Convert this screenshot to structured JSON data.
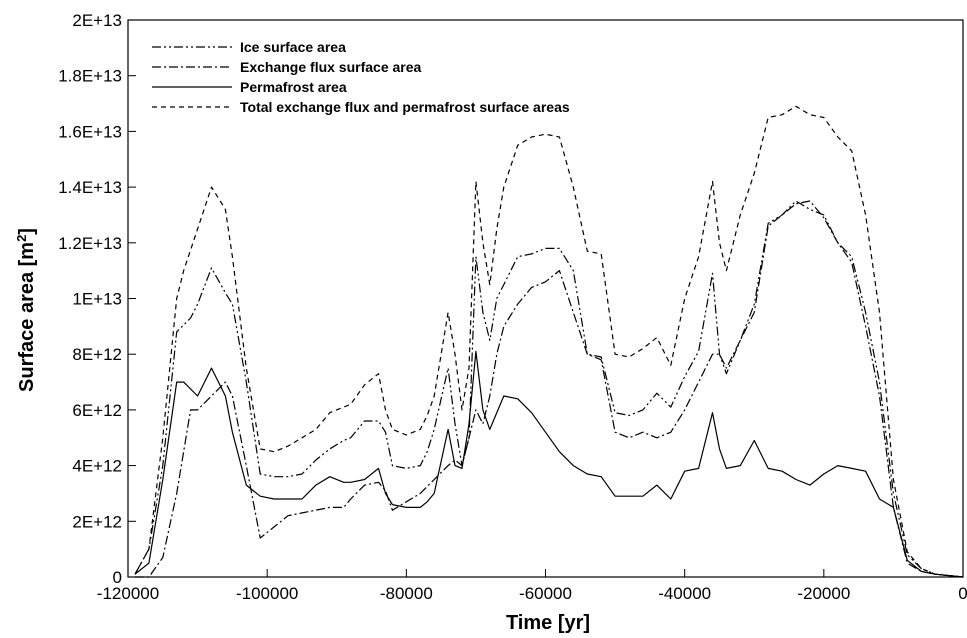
{
  "chart_data": {
    "type": "line",
    "title": "",
    "xlabel": "Time [yr]",
    "ylabel_main": "Surface area [m",
    "ylabel_sup": "2",
    "ylabel_close": "]",
    "xlim": [
      -120000,
      0
    ],
    "ylim": [
      0,
      20000000000000
    ],
    "x_ticks": [
      -120000,
      -100000,
      -80000,
      -60000,
      -40000,
      -20000,
      0
    ],
    "x_tick_labels": [
      "-120000",
      "-100000",
      "-80000",
      "-60000",
      "-40000",
      "-20000",
      "0"
    ],
    "y_ticks": [
      0,
      2000000000000,
      4000000000000,
      6000000000000,
      8000000000000,
      10000000000000,
      12000000000000,
      14000000000000,
      16000000000000,
      18000000000000,
      20000000000000
    ],
    "y_tick_labels": [
      "0",
      "2E+12",
      "4E+12",
      "6E+12",
      "8E+12",
      "1E+13",
      "1.2E+13",
      "1.4E+13",
      "1.6E+13",
      "1.8E+13",
      "2E+13"
    ],
    "grid": false,
    "legend_position": "top-left",
    "series": [
      {
        "name": "Ice surface area",
        "style": "dashdotdot",
        "x": [
          -119000,
          -117000,
          -115000,
          -113000,
          -111000,
          -110000,
          -108000,
          -106000,
          -105000,
          -103000,
          -101000,
          -99000,
          -97000,
          -95000,
          -93000,
          -91000,
          -89000,
          -88000,
          -86000,
          -84000,
          -83000,
          -82000,
          -80000,
          -78000,
          -77000,
          -76000,
          -74000,
          -73000,
          -72000,
          -71000,
          -70000,
          -69000,
          -68000,
          -67000,
          -66000,
          -64000,
          -62000,
          -60000,
          -58000,
          -56000,
          -54000,
          -52000,
          -50000,
          -48000,
          -46000,
          -44000,
          -42000,
          -40000,
          -38000,
          -36000,
          -35000,
          -34000,
          -32000,
          -30000,
          -28000,
          -26000,
          -24000,
          -22000,
          -20000,
          -18000,
          -16000,
          -14000,
          -12000,
          -10000,
          -8000,
          -6000,
          -4000,
          -2000,
          0
        ],
        "y": [
          100000000000.0,
          1000000000000.0,
          4000000000000.0,
          8800000000000.0,
          9300000000000.0,
          9800000000000.0,
          11100000000000.0,
          10200000000000.0,
          9800000000000.0,
          7000000000000.0,
          3700000000000.0,
          3600000000000.0,
          3600000000000.0,
          3700000000000.0,
          4200000000000.0,
          4600000000000.0,
          4900000000000.0,
          5000000000000.0,
          5600000000000.0,
          5600000000000.0,
          5200000000000.0,
          4000000000000.0,
          3900000000000.0,
          4000000000000.0,
          4500000000000.0,
          5300000000000.0,
          7500000000000.0,
          5500000000000.0,
          4000000000000.0,
          5000000000000.0,
          11500000000000.0,
          9500000000000.0,
          8500000000000.0,
          10000000000000.0,
          10500000000000.0,
          11500000000000.0,
          11600000000000.0,
          11800000000000.0,
          11800000000000.0,
          11000000000000.0,
          8000000000000.0,
          7900000000000.0,
          5900000000000.0,
          5800000000000.0,
          6000000000000.0,
          6600000000000.0,
          6100000000000.0,
          7200000000000.0,
          8100000000000.0,
          10900000000000.0,
          8000000000000.0,
          7300000000000.0,
          8500000000000.0,
          9800000000000.0,
          12700000000000.0,
          13000000000000.0,
          13500000000000.0,
          13200000000000.0,
          13000000000000.0,
          12000000000000.0,
          11500000000000.0,
          9500000000000.0,
          7000000000000.0,
          3000000000000.0,
          800000000000.0,
          300000000000.0,
          100000000000.0,
          50000000000.0,
          0
        ]
      },
      {
        "name": "Exchange flux surface area",
        "style": "dashdot",
        "x": [
          -119000,
          -117000,
          -115000,
          -113000,
          -111000,
          -110000,
          -108000,
          -106000,
          -105000,
          -103000,
          -101000,
          -99000,
          -97000,
          -95000,
          -93000,
          -91000,
          -89000,
          -88000,
          -86000,
          -84000,
          -83000,
          -82000,
          -80000,
          -78000,
          -76000,
          -74000,
          -73000,
          -72000,
          -71000,
          -70000,
          -69000,
          -68000,
          -67000,
          -66000,
          -64000,
          -62000,
          -60000,
          -58000,
          -56000,
          -54000,
          -52000,
          -50000,
          -48000,
          -46000,
          -44000,
          -42000,
          -40000,
          -38000,
          -36000,
          -35000,
          -34000,
          -32000,
          -30000,
          -28000,
          -26000,
          -24000,
          -22000,
          -20000,
          -18000,
          -16000,
          -14000,
          -12000,
          -10000,
          -8000,
          -6000,
          -4000,
          -2000,
          0
        ],
        "y": [
          0,
          0,
          700000000000.0,
          3000000000000.0,
          6000000000000.0,
          6000000000000.0,
          6500000000000.0,
          7000000000000.0,
          6500000000000.0,
          4000000000000.0,
          1400000000000.0,
          1800000000000.0,
          2200000000000.0,
          2300000000000.0,
          2400000000000.0,
          2500000000000.0,
          2500000000000.0,
          2800000000000.0,
          3300000000000.0,
          3400000000000.0,
          3100000000000.0,
          2400000000000.0,
          2700000000000.0,
          3000000000000.0,
          3500000000000.0,
          4000000000000.0,
          4200000000000.0,
          4000000000000.0,
          5000000000000.0,
          6000000000000.0,
          5500000000000.0,
          6500000000000.0,
          8000000000000.0,
          9000000000000.0,
          9800000000000.0,
          10400000000000.0,
          10600000000000.0,
          11000000000000.0,
          9500000000000.0,
          8000000000000.0,
          7800000000000.0,
          5200000000000.0,
          5000000000000.0,
          5200000000000.0,
          5000000000000.0,
          5200000000000.0,
          6000000000000.0,
          7000000000000.0,
          8000000000000.0,
          8000000000000.0,
          7500000000000.0,
          8500000000000.0,
          9500000000000.0,
          12600000000000.0,
          13000000000000.0,
          13400000000000.0,
          13500000000000.0,
          12900000000000.0,
          12000000000000.0,
          11300000000000.0,
          9000000000000.0,
          6500000000000.0,
          2500000000000.0,
          500000000000.0,
          200000000000.0,
          100000000000.0,
          50000000000.0,
          0
        ]
      },
      {
        "name": "Permafrost area",
        "style": "solid",
        "x": [
          -119000,
          -117000,
          -115000,
          -113000,
          -112000,
          -110000,
          -108000,
          -106000,
          -105000,
          -103000,
          -101000,
          -99000,
          -97000,
          -95000,
          -93000,
          -91000,
          -89000,
          -88000,
          -86000,
          -84000,
          -83000,
          -82000,
          -80000,
          -78000,
          -77000,
          -76000,
          -74000,
          -73000,
          -72000,
          -71000,
          -70000,
          -69000,
          -68000,
          -66000,
          -64000,
          -62000,
          -60000,
          -58000,
          -56000,
          -54000,
          -52000,
          -50000,
          -48000,
          -46000,
          -44000,
          -42000,
          -40000,
          -38000,
          -36000,
          -35000,
          -34000,
          -32000,
          -30000,
          -28000,
          -26000,
          -24000,
          -22000,
          -20000,
          -18000,
          -16000,
          -14000,
          -12000,
          -10000,
          -8000,
          -6000,
          -4000,
          -2000,
          0
        ],
        "y": [
          100000000000.0,
          500000000000.0,
          3500000000000.0,
          7000000000000.0,
          7000000000000.0,
          6500000000000.0,
          7500000000000.0,
          6500000000000.0,
          5200000000000.0,
          3300000000000.0,
          2900000000000.0,
          2800000000000.0,
          2800000000000.0,
          2800000000000.0,
          3300000000000.0,
          3600000000000.0,
          3400000000000.0,
          3400000000000.0,
          3500000000000.0,
          3900000000000.0,
          3000000000000.0,
          2600000000000.0,
          2500000000000.0,
          2500000000000.0,
          2700000000000.0,
          3000000000000.0,
          5300000000000.0,
          4000000000000.0,
          3900000000000.0,
          5500000000000.0,
          8100000000000.0,
          6000000000000.0,
          5300000000000.0,
          6500000000000.0,
          6400000000000.0,
          5900000000000.0,
          5200000000000.0,
          4500000000000.0,
          4000000000000.0,
          3700000000000.0,
          3600000000000.0,
          2900000000000.0,
          2900000000000.0,
          2900000000000.0,
          3300000000000.0,
          2800000000000.0,
          3800000000000.0,
          3900000000000.0,
          5900000000000.0,
          4600000000000.0,
          3900000000000.0,
          4000000000000.0,
          4900000000000.0,
          3900000000000.0,
          3800000000000.0,
          3500000000000.0,
          3300000000000.0,
          3700000000000.0,
          4000000000000.0,
          3900000000000.0,
          3800000000000.0,
          2800000000000.0,
          2500000000000.0,
          600000000000.0,
          200000000000.0,
          100000000000.0,
          50000000000.0,
          0
        ]
      },
      {
        "name": "Total exchange flux and permafrost surface areas",
        "style": "dashed",
        "x": [
          -119000,
          -117000,
          -115000,
          -113000,
          -112000,
          -110000,
          -108000,
          -106000,
          -105000,
          -103000,
          -101000,
          -99000,
          -97000,
          -95000,
          -93000,
          -91000,
          -89000,
          -88000,
          -86000,
          -84000,
          -83000,
          -82000,
          -80000,
          -78000,
          -77000,
          -76000,
          -74000,
          -73000,
          -72000,
          -71000,
          -70000,
          -69000,
          -68000,
          -67000,
          -66000,
          -64000,
          -62000,
          -60000,
          -58000,
          -56000,
          -54000,
          -52000,
          -50000,
          -48000,
          -46000,
          -44000,
          -42000,
          -40000,
          -38000,
          -36000,
          -35000,
          -34000,
          -32000,
          -30000,
          -28000,
          -26000,
          -24000,
          -22000,
          -20000,
          -18000,
          -16000,
          -14000,
          -12000,
          -10000,
          -8000,
          -6000,
          -4000,
          -2000,
          0
        ],
        "y": [
          100000000000.0,
          1000000000000.0,
          5000000000000.0,
          10000000000000.0,
          11000000000000.0,
          12500000000000.0,
          14000000000000.0,
          13200000000000.0,
          11500000000000.0,
          7500000000000.0,
          4600000000000.0,
          4500000000000.0,
          4700000000000.0,
          5000000000000.0,
          5300000000000.0,
          5900000000000.0,
          6100000000000.0,
          6200000000000.0,
          6900000000000.0,
          7300000000000.0,
          6000000000000.0,
          5300000000000.0,
          5100000000000.0,
          5300000000000.0,
          5800000000000.0,
          6500000000000.0,
          9500000000000.0,
          8000000000000.0,
          6000000000000.0,
          7500000000000.0,
          14200000000000.0,
          12000000000000.0,
          10500000000000.0,
          12500000000000.0,
          14000000000000.0,
          15500000000000.0,
          15800000000000.0,
          15900000000000.0,
          15800000000000.0,
          14000000000000.0,
          11700000000000.0,
          11600000000000.0,
          8000000000000.0,
          7900000000000.0,
          8200000000000.0,
          8600000000000.0,
          7600000000000.0,
          10000000000000.0,
          11500000000000.0,
          14200000000000.0,
          12000000000000.0,
          11000000000000.0,
          13000000000000.0,
          14500000000000.0,
          16500000000000.0,
          16600000000000.0,
          16900000000000.0,
          16600000000000.0,
          16500000000000.0,
          15800000000000.0,
          15300000000000.0,
          13000000000000.0,
          9500000000000.0,
          3500000000000.0,
          900000000000.0,
          300000000000.0,
          100000000000.0,
          50000000000.0,
          0
        ]
      }
    ]
  }
}
